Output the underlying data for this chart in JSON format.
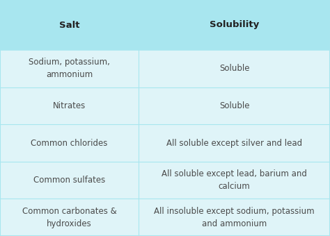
{
  "header": [
    "Salt",
    "Solubility"
  ],
  "rows": [
    [
      "Sodium, potassium,\nammonium",
      "Soluble"
    ],
    [
      "Nitrates",
      "Soluble"
    ],
    [
      "Common chlorides",
      "All soluble except silver and lead"
    ],
    [
      "Common sulfates",
      "All soluble except lead, barium and\ncalcium"
    ],
    [
      "Common carbonates &\nhydroxides",
      "All insoluble except sodium, potassium\nand ammonium"
    ]
  ],
  "header_bg": "#a8e6ef",
  "row_bg": "#dff4f8",
  "divider_color": "#a8e6ef",
  "text_color": "#4a4a4a",
  "header_text_color": "#222222",
  "font_size": 8.5,
  "header_font_size": 9.5,
  "col_split": 0.42,
  "figsize": [
    4.74,
    3.4
  ],
  "dpi": 100
}
